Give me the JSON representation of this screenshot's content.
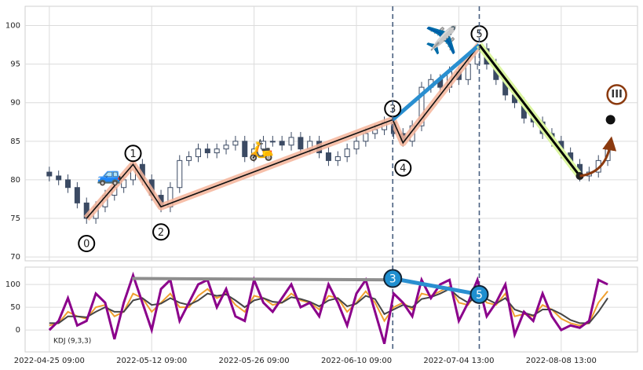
{
  "chart_data": [
    {
      "type": "candlestick",
      "color": "#3b4a63",
      "grid": true,
      "ylim": [
        69.5,
        102.5
      ],
      "yticks": [
        70,
        75,
        80,
        85,
        90,
        95,
        100
      ],
      "open": [
        81.0,
        80.5,
        80.0,
        79.0,
        77.0,
        75.0,
        76.5,
        78.0,
        79.0,
        80.0,
        82.0,
        80.0,
        78.0,
        76.5,
        79.0,
        82.5,
        83.0,
        84.0,
        83.5,
        84.0,
        84.5,
        85.0,
        83.0,
        84.0,
        85.0,
        85.0,
        84.5,
        85.5,
        84.0,
        85.0,
        83.5,
        82.5,
        83.0,
        84.0,
        85.0,
        86.0,
        86.5,
        87.5,
        86.0,
        85.0,
        87.0,
        92.0,
        93.0,
        92.0,
        94.0,
        93.0,
        95.0,
        97.0,
        95.0,
        93.0,
        91.0,
        90.0,
        88.0,
        87.5,
        86.0,
        85.0,
        83.5,
        82.0,
        80.5,
        81.0,
        82.5
      ],
      "high": [
        81.7,
        81.2,
        80.7,
        79.7,
        77.7,
        77.2,
        78.7,
        79.7,
        80.7,
        82.7,
        82.7,
        80.7,
        78.7,
        79.7,
        83.2,
        83.7,
        84.7,
        84.7,
        84.7,
        85.2,
        85.7,
        85.7,
        84.7,
        85.7,
        85.7,
        85.7,
        86.2,
        86.2,
        85.7,
        85.7,
        84.2,
        83.7,
        84.7,
        85.7,
        86.7,
        87.2,
        88.2,
        88.2,
        86.7,
        87.7,
        92.7,
        93.7,
        93.7,
        94.7,
        94.7,
        95.7,
        97.7,
        97.7,
        95.7,
        93.7,
        91.7,
        90.7,
        88.7,
        88.2,
        86.7,
        85.7,
        84.2,
        82.7,
        81.7,
        83.2,
        84.7
      ],
      "low": [
        79.8,
        79.3,
        78.3,
        76.3,
        74.3,
        74.3,
        75.8,
        77.3,
        78.3,
        79.3,
        79.3,
        77.3,
        75.8,
        75.8,
        78.3,
        81.8,
        82.3,
        82.8,
        82.8,
        83.3,
        83.8,
        82.3,
        82.3,
        83.3,
        84.3,
        83.8,
        83.8,
        83.3,
        83.3,
        82.8,
        81.8,
        81.8,
        82.3,
        83.3,
        84.3,
        85.3,
        85.8,
        85.3,
        84.3,
        84.3,
        86.3,
        91.3,
        91.3,
        91.3,
        92.3,
        92.3,
        94.3,
        94.3,
        92.3,
        90.3,
        89.3,
        87.3,
        86.8,
        85.3,
        84.3,
        82.8,
        81.3,
        79.8,
        79.8,
        80.3,
        81.8
      ],
      "close": [
        80.5,
        80.0,
        79.0,
        77.0,
        75.0,
        76.5,
        78.0,
        79.0,
        80.0,
        82.0,
        80.0,
        78.0,
        76.5,
        79.0,
        82.5,
        83.0,
        84.0,
        83.5,
        84.0,
        84.5,
        85.0,
        83.0,
        84.0,
        85.0,
        85.0,
        84.5,
        85.5,
        84.0,
        85.0,
        83.5,
        82.5,
        83.0,
        84.0,
        85.0,
        86.0,
        86.5,
        87.5,
        86.0,
        85.0,
        87.0,
        92.0,
        93.0,
        92.0,
        94.0,
        93.0,
        95.0,
        97.0,
        95.0,
        93.0,
        91.0,
        90.0,
        88.0,
        87.5,
        86.0,
        85.0,
        83.5,
        82.0,
        80.5,
        81.0,
        82.5,
        84.0
      ],
      "waves": {
        "labels": [
          "0",
          "1",
          "2",
          "3",
          "4",
          "5"
        ],
        "x": [
          4,
          9,
          12,
          36.9,
          38,
          46.2
        ],
        "y": [
          75,
          82,
          76.5,
          87.8,
          84.8,
          97.5
        ]
      },
      "correction": {
        "x": 57,
        "y": 80.5
      },
      "target": {
        "label": "III",
        "x": 60.3,
        "y": 87.8
      },
      "icons": [
        "🚙",
        "🛵",
        "✈️"
      ]
    },
    {
      "type": "line",
      "label": "KDJ (9,3,3)",
      "grid": true,
      "xlim": [
        -2.6,
        63.2
      ],
      "xticks": [
        {
          "value": 0,
          "label": "2022-04-25 09:00"
        },
        {
          "value": 11,
          "label": "2022-05-12 09:00"
        },
        {
          "value": 22,
          "label": "2022-05-26 09:00"
        },
        {
          "value": 33,
          "label": "2022-06-10 09:00"
        },
        {
          "value": 44,
          "label": "2022-07-04 13:00"
        },
        {
          "value": 55,
          "label": "2022-08-08 13:00"
        }
      ],
      "ylim": [
        -48,
        138
      ],
      "yticks": [
        0,
        50,
        100
      ],
      "series": [
        {
          "color": "#f0a030",
          "values": [
            10,
            15,
            40,
            30,
            25,
            50,
            55,
            30,
            40,
            80,
            70,
            40,
            60,
            80,
            50,
            50,
            75,
            90,
            70,
            80,
            55,
            40,
            75,
            70,
            55,
            60,
            80,
            65,
            60,
            45,
            75,
            70,
            40,
            60,
            85,
            60,
            20,
            50,
            60,
            45,
            80,
            75,
            85,
            95,
            60,
            55,
            85,
            60,
            55,
            80,
            30,
            35,
            30,
            55,
            45,
            25,
            15,
            10,
            15,
            60,
            85
          ]
        },
        {
          "color": "#454545",
          "values": [
            15,
            15,
            30,
            30,
            28,
            40,
            50,
            40,
            40,
            65,
            70,
            55,
            58,
            70,
            60,
            55,
            65,
            80,
            75,
            78,
            65,
            50,
            65,
            70,
            62,
            60,
            72,
            68,
            62,
            52,
            65,
            70,
            52,
            58,
            75,
            68,
            35,
            45,
            55,
            50,
            68,
            72,
            80,
            90,
            72,
            60,
            75,
            68,
            58,
            70,
            45,
            38,
            32,
            45,
            45,
            35,
            22,
            15,
            15,
            40,
            70
          ]
        },
        {
          "color": "#8b008b",
          "values": [
            0,
            20,
            70,
            10,
            20,
            80,
            60,
            -20,
            60,
            120,
            60,
            0,
            90,
            110,
            20,
            60,
            100,
            110,
            50,
            90,
            30,
            20,
            110,
            60,
            40,
            70,
            100,
            50,
            60,
            30,
            100,
            60,
            10,
            80,
            110,
            40,
            -30,
            80,
            60,
            30,
            110,
            70,
            100,
            110,
            20,
            60,
            110,
            30,
            60,
            100,
            -10,
            40,
            20,
            80,
            30,
            0,
            10,
            5,
            20,
            110,
            100
          ]
        }
      ],
      "trendline": {
        "x": [
          8.9,
          36.9
        ],
        "y": [
          113,
          110
        ]
      },
      "markers": {
        "labels": [
          "3",
          "5"
        ],
        "x": [
          36.9,
          46.2
        ],
        "y": [
          113,
          78
        ]
      }
    }
  ]
}
